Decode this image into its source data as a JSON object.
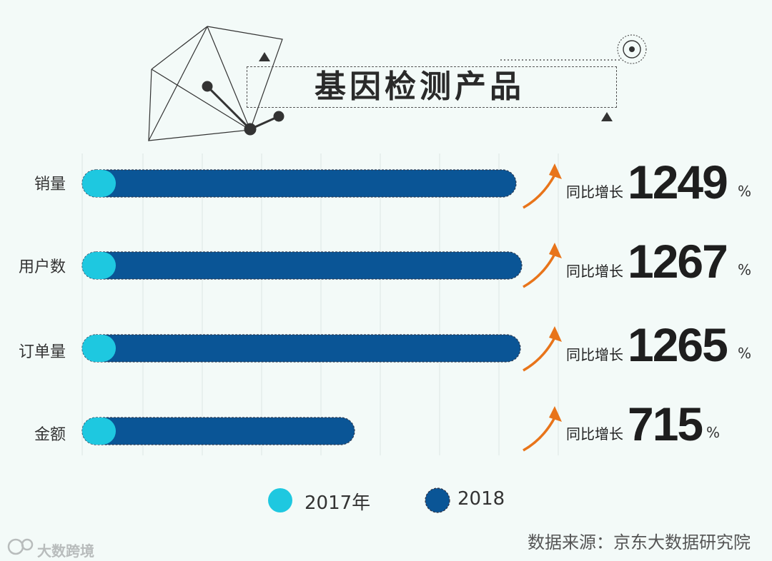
{
  "title": "基因检测产品",
  "chart_data": {
    "type": "bar",
    "orientation": "horizontal",
    "categories": [
      "销量",
      "用户数",
      "订单量",
      "金额"
    ],
    "series": [
      {
        "name": "2017年",
        "color": "#1ec8e0"
      },
      {
        "name": "2018",
        "color": "#0a5596"
      }
    ],
    "growth_label": "同比增长",
    "growth_values": [
      "1249",
      "1267",
      "1265",
      "715"
    ],
    "growth_unit": "%",
    "legend_position": "bottom",
    "grid": true
  },
  "source": "数据来源：京东大数据研究院",
  "watermark": "大数跨境"
}
